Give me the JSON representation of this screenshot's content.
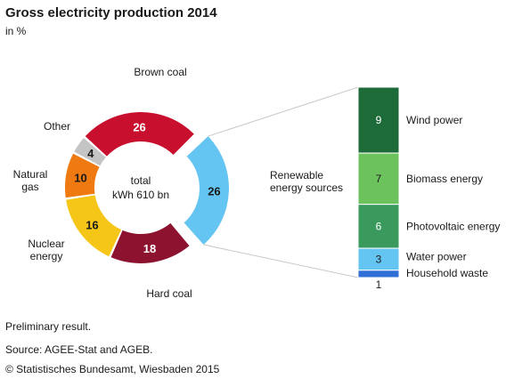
{
  "header": {
    "title": "Gross electricity production 2014",
    "subtitle": "in %"
  },
  "footer": {
    "note": "Preliminary result.",
    "source": "Source: AGEE-Stat and AGEB.",
    "copyright": "© Statistisches Bundesamt, Wiesbaden 2015"
  },
  "chart_data": [
    {
      "type": "pie",
      "title": "Gross electricity production 2014",
      "subtitle": "in %",
      "center_label": [
        "total",
        "kWh 610 bn"
      ],
      "slices": [
        {
          "label": "Brown coal",
          "value": 26,
          "color": "#c8102e"
        },
        {
          "label": "Renewable energy sources",
          "value": 26,
          "color": "#64c4f2",
          "exploded": true
        },
        {
          "label": "Hard coal",
          "value": 18,
          "color": "#8c1230"
        },
        {
          "label": "Nuclear energy",
          "value": 16,
          "color": "#f5c518"
        },
        {
          "label": "Natural gas",
          "value": 10,
          "color": "#f07a12"
        },
        {
          "label": "Other",
          "value": 4,
          "color": "#c4c4c4"
        }
      ]
    },
    {
      "type": "bar",
      "stacked": true,
      "categories": [
        "Wind power",
        "Biomass energy",
        "Photovoltaic energy",
        "Water power",
        "Household waste"
      ],
      "values": [
        9,
        7,
        6,
        3,
        1
      ],
      "colors": [
        "#1e6b3a",
        "#6cc35e",
        "#3a9a5e",
        "#64c4f2",
        "#2f6fd6"
      ]
    }
  ]
}
